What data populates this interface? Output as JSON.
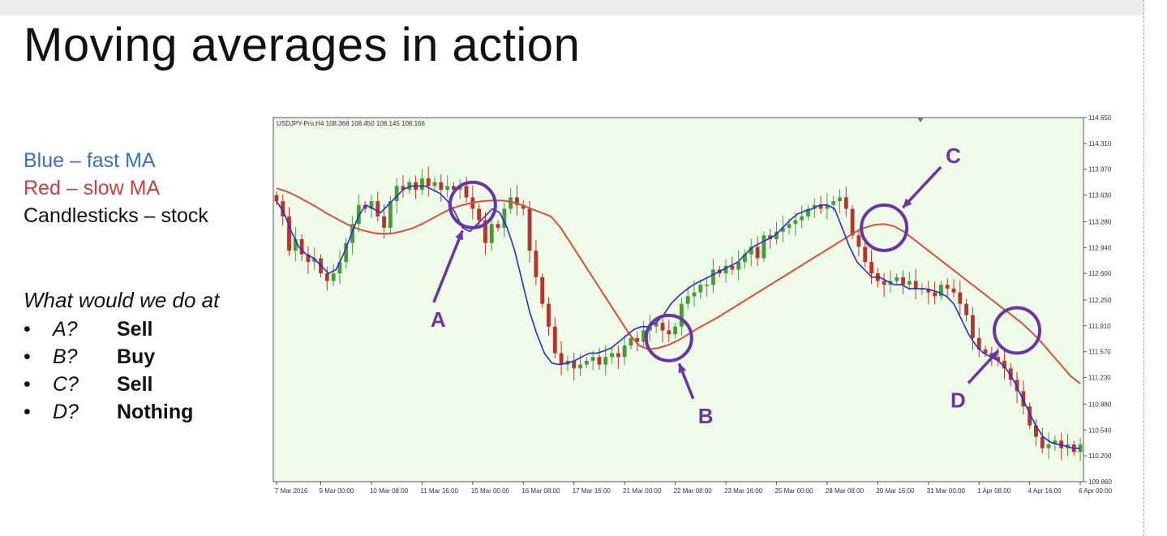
{
  "slide": {
    "title": "Moving averages in action",
    "legend": [
      {
        "text": "Blue – fast MA",
        "color": "#3a6fc4"
      },
      {
        "text": "Red – slow MA",
        "color": "#c8413a"
      },
      {
        "text": "Candlesticks – stock",
        "color": "#111111"
      }
    ],
    "question": "What would we do at",
    "answers": [
      {
        "bullet": "•",
        "label": "A?",
        "answer": "Sell"
      },
      {
        "bullet": "•",
        "label": "B?",
        "answer": "Buy"
      },
      {
        "bullet": "•",
        "label": "C?",
        "answer": "Sell"
      },
      {
        "bullet": "•",
        "label": "D?",
        "answer": "Nothing"
      }
    ]
  },
  "colors": {
    "plot_bg": "#eefbe9",
    "bull": "#4a9a3a",
    "bear": "#b8352e",
    "fast_ma": "#2a2ad8",
    "slow_ma": "#d8503a",
    "annotation": "#6a34a6"
  },
  "chart_data": {
    "type": "candlestick",
    "header": "USDJPY-Pro,H4  108.368 108.450 108.145 108.166",
    "y_ticks": [
      "114.650",
      "114.310",
      "113.970",
      "113.630",
      "113.280",
      "112.940",
      "112.600",
      "112.250",
      "111.910",
      "111.570",
      "111.230",
      "110.880",
      "110.540",
      "110.200",
      "109.860"
    ],
    "ylim": [
      109.86,
      114.65
    ],
    "x_ticks": [
      {
        "label": "7 Mar 2016",
        "i": 0
      },
      {
        "label": "9 Mar 00:00",
        "i": 7
      },
      {
        "label": "10 Mar 08:00",
        "i": 15
      },
      {
        "label": "11 Mar 16:00",
        "i": 23
      },
      {
        "label": "15 Mar 00:00",
        "i": 31
      },
      {
        "label": "16 Mar 08:00",
        "i": 39
      },
      {
        "label": "17 Mar 16:00",
        "i": 47
      },
      {
        "label": "21 Mar 00:00",
        "i": 55
      },
      {
        "label": "22 Mar 08:00",
        "i": 63
      },
      {
        "label": "23 Mar 16:00",
        "i": 71
      },
      {
        "label": "25 Mar 00:00",
        "i": 79
      },
      {
        "label": "28 Mar 08:00",
        "i": 87
      },
      {
        "label": "29 Mar 16:00",
        "i": 95
      },
      {
        "label": "31 Mar 00:00",
        "i": 103
      },
      {
        "label": "1 Apr 08:00",
        "i": 111
      },
      {
        "label": "4 Apr 16:00",
        "i": 119
      },
      {
        "label": "6 Apr 00:00",
        "i": 127
      }
    ],
    "closes": [
      113.55,
      113.35,
      112.9,
      113.05,
      112.85,
      112.75,
      112.8,
      112.6,
      112.5,
      112.6,
      112.75,
      113.0,
      113.25,
      113.5,
      113.45,
      113.55,
      113.35,
      113.2,
      113.55,
      113.75,
      113.7,
      113.8,
      113.7,
      113.85,
      113.75,
      113.8,
      113.7,
      113.75,
      113.7,
      113.75,
      113.6,
      113.45,
      113.3,
      113.0,
      113.25,
      113.2,
      113.45,
      113.6,
      113.5,
      113.45,
      112.9,
      112.55,
      112.2,
      111.9,
      111.55,
      111.4,
      111.45,
      111.35,
      111.4,
      111.45,
      111.5,
      111.4,
      111.5,
      111.55,
      111.5,
      111.65,
      111.75,
      111.7,
      111.85,
      111.9,
      111.95,
      111.85,
      111.8,
      111.9,
      112.2,
      112.3,
      112.35,
      112.45,
      112.45,
      112.65,
      112.6,
      112.7,
      112.65,
      112.75,
      112.85,
      112.95,
      112.8,
      113.1,
      113.05,
      113.15,
      113.2,
      113.25,
      113.3,
      113.35,
      113.45,
      113.5,
      113.45,
      113.5,
      113.55,
      113.6,
      113.45,
      113.1,
      112.95,
      112.75,
      112.6,
      112.5,
      112.45,
      112.5,
      112.55,
      112.45,
      112.5,
      112.4,
      112.4,
      112.35,
      112.3,
      112.45,
      112.4,
      112.35,
      112.2,
      112.05,
      111.75,
      111.6,
      111.55,
      111.5,
      111.45,
      111.35,
      111.2,
      111.05,
      110.85,
      110.6,
      110.45,
      110.3,
      110.35,
      110.4,
      110.3,
      110.35,
      110.25,
      110.35
    ],
    "fast_ma": [
      113.55,
      113.4,
      113.15,
      112.95,
      112.85,
      112.8,
      112.7,
      112.6,
      112.65,
      112.85,
      113.1,
      113.35,
      113.5,
      113.45,
      113.4,
      113.5,
      113.6,
      113.7,
      113.75,
      113.75,
      113.75,
      113.7,
      113.65,
      113.55,
      113.4,
      113.2,
      113.15,
      113.25,
      113.35,
      113.45,
      113.4,
      113.2,
      112.9,
      112.5,
      112.1,
      111.8,
      111.55,
      111.42,
      111.4,
      111.42,
      111.45,
      111.5,
      111.55,
      111.55,
      111.58,
      111.62,
      111.7,
      111.78,
      111.86,
      111.9,
      111.9,
      111.95,
      112.05,
      112.2,
      112.3,
      112.38,
      112.45,
      112.5,
      112.55,
      112.6,
      112.65,
      112.7,
      112.75,
      112.85,
      112.95,
      113.0,
      113.05,
      113.1,
      113.2,
      113.3,
      113.38,
      113.42,
      113.45,
      113.5,
      113.5,
      113.45,
      113.2,
      112.95,
      112.75,
      112.65,
      112.55,
      112.55,
      112.5,
      112.45,
      112.45,
      112.4,
      112.4,
      112.4,
      112.38,
      112.35,
      112.3,
      112.2,
      112.0,
      111.8,
      111.65,
      111.55,
      111.5,
      111.45,
      111.35,
      111.2,
      111.0,
      110.8,
      110.6,
      110.45,
      110.38,
      110.35,
      110.33,
      110.3,
      110.3
    ],
    "slow_ma": [
      113.72,
      113.68,
      113.62,
      113.55,
      113.48,
      113.4,
      113.33,
      113.26,
      113.2,
      113.16,
      113.13,
      113.12,
      113.13,
      113.16,
      113.2,
      113.26,
      113.33,
      113.4,
      113.46,
      113.5,
      113.53,
      113.55,
      113.56,
      113.56,
      113.54,
      113.5,
      113.45,
      113.4,
      113.35,
      113.2,
      113.0,
      112.8,
      112.6,
      112.4,
      112.2,
      112.0,
      111.8,
      111.65,
      111.6,
      111.62,
      111.66,
      111.72,
      111.8,
      111.88,
      111.95,
      112.02,
      112.1,
      112.18,
      112.26,
      112.34,
      112.42,
      112.5,
      112.58,
      112.66,
      112.74,
      112.82,
      112.9,
      112.98,
      113.06,
      113.14,
      113.2,
      113.24,
      113.25,
      113.22,
      113.15,
      113.05,
      112.95,
      112.85,
      112.75,
      112.65,
      112.55,
      112.45,
      112.35,
      112.25,
      112.15,
      112.05,
      111.95,
      111.83,
      111.7,
      111.55,
      111.4,
      111.25,
      111.15
    ],
    "annotations": [
      {
        "label": "A",
        "i": 31,
        "price": 113.5,
        "action": "Sell"
      },
      {
        "label": "B",
        "i": 62,
        "price": 111.75,
        "action": "Buy"
      },
      {
        "label": "C",
        "i": 96,
        "price": 113.2,
        "action": "Sell"
      },
      {
        "label": "D",
        "i": 117,
        "price": 111.85,
        "action": "Nothing"
      }
    ]
  }
}
